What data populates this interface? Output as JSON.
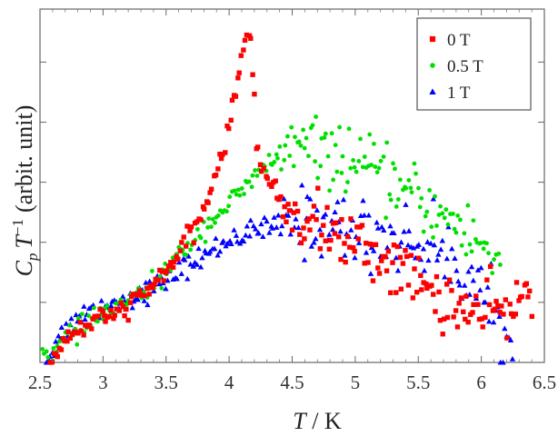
{
  "chart_data": {
    "type": "scatter",
    "title": "",
    "xlabel": {
      "var": "T",
      "rest": " / K"
    },
    "ylabel": {
      "var1": "C",
      "sub": "p",
      "var2": "T",
      "sup": "−1",
      "unit": "(arbit. unit)"
    },
    "xlim": [
      2.5,
      6.5
    ],
    "ylim": [
      0,
      1
    ],
    "xticks": [
      "2.5",
      "3",
      "3.5",
      "4",
      "4.5",
      "5",
      "5.5",
      "6",
      "6.5"
    ],
    "xtick_values": [
      2.5,
      3.0,
      3.5,
      4.0,
      4.5,
      5.0,
      5.5,
      6.0,
      6.5
    ],
    "ytick_values": [
      0.17,
      0.34,
      0.51,
      0.68,
      0.85
    ],
    "yticks_labeled": false,
    "grid": false,
    "legend_position": "top-right",
    "series": [
      {
        "name": "0 T",
        "marker": "square",
        "color": "#ff0000",
        "anchors": [
          [
            2.58,
            0.0
          ],
          [
            2.65,
            0.04
          ],
          [
            2.75,
            0.08
          ],
          [
            2.9,
            0.11
          ],
          [
            3.05,
            0.13
          ],
          [
            3.2,
            0.16
          ],
          [
            3.35,
            0.2
          ],
          [
            3.5,
            0.26
          ],
          [
            3.65,
            0.33
          ],
          [
            3.8,
            0.43
          ],
          [
            3.92,
            0.56
          ],
          [
            4.02,
            0.7
          ],
          [
            4.1,
            0.86
          ],
          [
            4.15,
            0.98
          ],
          [
            4.18,
            0.88
          ],
          [
            4.22,
            0.6
          ],
          [
            4.3,
            0.52
          ],
          [
            4.4,
            0.46
          ],
          [
            4.5,
            0.42
          ],
          [
            4.7,
            0.39
          ],
          [
            5.0,
            0.33
          ],
          [
            5.3,
            0.28
          ],
          [
            5.6,
            0.2
          ],
          [
            5.9,
            0.14
          ],
          [
            6.2,
            0.14
          ],
          [
            6.4,
            0.2
          ]
        ],
        "n_points": 260,
        "noise": 0.026
      },
      {
        "name": "0.5 T",
        "marker": "circle",
        "color": "#00e000",
        "anchors": [
          [
            2.52,
            0.05
          ],
          [
            2.6,
            0.02
          ],
          [
            2.7,
            0.07
          ],
          [
            2.85,
            0.1
          ],
          [
            3.0,
            0.14
          ],
          [
            3.2,
            0.17
          ],
          [
            3.4,
            0.22
          ],
          [
            3.6,
            0.3
          ],
          [
            3.8,
            0.38
          ],
          [
            4.0,
            0.45
          ],
          [
            4.15,
            0.5
          ],
          [
            4.3,
            0.56
          ],
          [
            4.5,
            0.61
          ],
          [
            4.7,
            0.6
          ],
          [
            4.9,
            0.58
          ],
          [
            5.2,
            0.53
          ],
          [
            5.5,
            0.46
          ],
          [
            5.8,
            0.39
          ],
          [
            6.0,
            0.33
          ],
          [
            6.15,
            0.28
          ]
        ],
        "n_points": 240,
        "noise": 0.027
      },
      {
        "name": "1 T",
        "marker": "triangle",
        "color": "#0000ff",
        "anchors": [
          [
            2.55,
            0.0
          ],
          [
            2.65,
            0.07
          ],
          [
            2.8,
            0.13
          ],
          [
            3.0,
            0.16
          ],
          [
            3.2,
            0.18
          ],
          [
            3.4,
            0.21
          ],
          [
            3.6,
            0.26
          ],
          [
            3.8,
            0.3
          ],
          [
            4.0,
            0.35
          ],
          [
            4.3,
            0.38
          ],
          [
            4.5,
            0.4
          ],
          [
            4.8,
            0.39
          ],
          [
            5.0,
            0.37
          ],
          [
            5.3,
            0.35
          ],
          [
            5.6,
            0.33
          ],
          [
            5.9,
            0.25
          ],
          [
            6.1,
            0.14
          ],
          [
            6.25,
            0.01
          ]
        ],
        "n_points": 240,
        "noise": 0.03
      }
    ]
  }
}
